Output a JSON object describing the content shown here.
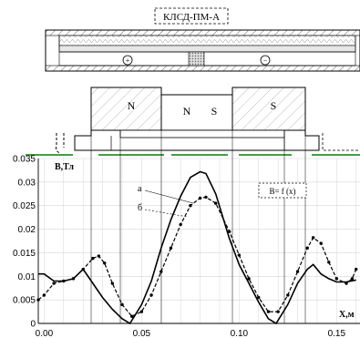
{
  "device_label": "КЛСД-ПМ-А",
  "polarity": {
    "plus": "+",
    "minus": "−"
  },
  "magnets": {
    "left": "N",
    "center_left": "N",
    "center_right": "S",
    "right": "S"
  },
  "formula_box": "B= f (x)",
  "colors": {
    "line": "#000000",
    "grid": "#d6d6d6",
    "floor": "#008000",
    "ferrite": "#c8c8c8"
  },
  "chart_data": {
    "type": "line",
    "ylabel": "B,Тл",
    "xlabel": "X,м",
    "xlim": [
      -0.003,
      0.162
    ],
    "ylim": [
      0,
      0.035
    ],
    "x_ticks": [
      "0.00",
      "0.05",
      "0.10",
      "0.15"
    ],
    "y_ticks": [
      "0",
      "0.005",
      "0.01",
      "0.015",
      "0.02",
      "0.025",
      "0.03",
      "0.035"
    ],
    "grid": true,
    "series": [
      {
        "name": "а",
        "style": "solid",
        "markers": false,
        "x": [
          -0.003,
          0.0,
          0.005,
          0.01,
          0.015,
          0.02,
          0.025,
          0.03,
          0.035,
          0.04,
          0.044,
          0.05,
          0.055,
          0.06,
          0.065,
          0.07,
          0.075,
          0.08,
          0.083,
          0.088,
          0.095,
          0.1,
          0.105,
          0.11,
          0.115,
          0.119,
          0.125,
          0.13,
          0.135,
          0.138,
          0.142,
          0.146,
          0.15,
          0.155,
          0.16
        ],
        "y": [
          0.0105,
          0.0105,
          0.009,
          0.009,
          0.0095,
          0.0115,
          0.0085,
          0.0055,
          0.003,
          0.001,
          0.0,
          0.004,
          0.009,
          0.016,
          0.022,
          0.027,
          0.031,
          0.0322,
          0.0318,
          0.0275,
          0.018,
          0.0125,
          0.0085,
          0.0045,
          0.001,
          0.0,
          0.004,
          0.0085,
          0.0115,
          0.0125,
          0.0105,
          0.0095,
          0.0088,
          0.0088,
          0.0092
        ]
      },
      {
        "name": "б",
        "style": "dashed",
        "markers": true,
        "x": [
          -0.003,
          0.0,
          0.005,
          0.01,
          0.015,
          0.02,
          0.025,
          0.028,
          0.031,
          0.035,
          0.04,
          0.045,
          0.05,
          0.055,
          0.06,
          0.065,
          0.07,
          0.075,
          0.08,
          0.083,
          0.088,
          0.095,
          0.1,
          0.105,
          0.11,
          0.115,
          0.12,
          0.125,
          0.13,
          0.135,
          0.138,
          0.142,
          0.146,
          0.15,
          0.155,
          0.158,
          0.16
        ],
        "y": [
          0.005,
          0.006,
          0.0085,
          0.009,
          0.0095,
          0.0115,
          0.0138,
          0.0143,
          0.0128,
          0.0085,
          0.004,
          0.0015,
          0.0025,
          0.006,
          0.011,
          0.016,
          0.021,
          0.025,
          0.0266,
          0.0268,
          0.0255,
          0.0195,
          0.0145,
          0.0095,
          0.0055,
          0.0025,
          0.0025,
          0.006,
          0.011,
          0.016,
          0.0182,
          0.017,
          0.013,
          0.0095,
          0.0085,
          0.0095,
          0.0115
        ]
      }
    ]
  }
}
